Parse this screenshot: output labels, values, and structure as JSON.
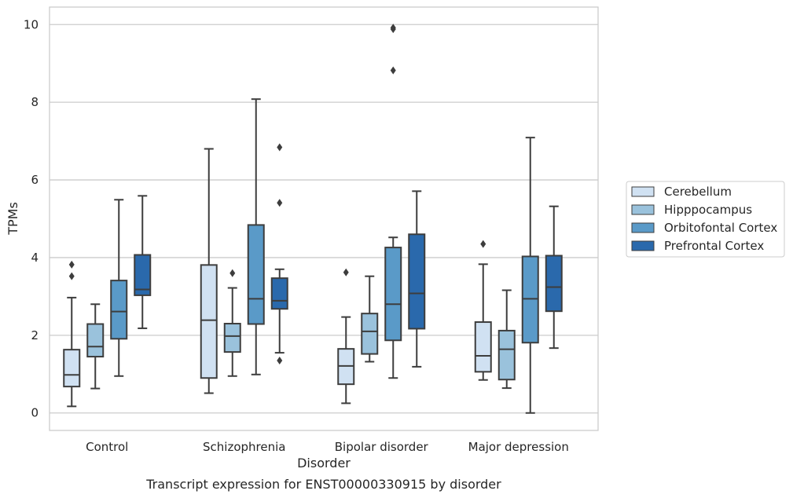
{
  "chart_data": {
    "type": "box",
    "title": "",
    "caption": "Transcript expression for ENST00000330915 by disorder",
    "xlabel": "Disorder",
    "ylabel": "TPMs",
    "ylim": [
      -0.45,
      10.45
    ],
    "yticks": [
      0,
      2,
      4,
      6,
      8,
      10
    ],
    "grid": "horizontal",
    "legend": "right",
    "categories": [
      "Control",
      "Schizophrenia",
      "Bipolar disorder",
      "Major depression"
    ],
    "series": [
      {
        "name": "Cerebellum",
        "color": "#d0e1f2",
        "boxes": [
          {
            "whislo": 0.17,
            "q1": 0.68,
            "med": 0.98,
            "q3": 1.63,
            "whishi": 2.97,
            "fliers": [
              3.52,
              3.82
            ]
          },
          {
            "whislo": 0.51,
            "q1": 0.9,
            "med": 2.39,
            "q3": 3.81,
            "whishi": 6.8,
            "fliers": []
          },
          {
            "whislo": 0.25,
            "q1": 0.74,
            "med": 1.21,
            "q3": 1.65,
            "whishi": 2.47,
            "fliers": [
              3.62
            ]
          },
          {
            "whislo": 0.85,
            "q1": 1.06,
            "med": 1.47,
            "q3": 2.34,
            "whishi": 3.83,
            "fliers": [
              4.35
            ]
          }
        ]
      },
      {
        "name": "Hipppocampus",
        "color": "#9ac2dc",
        "boxes": [
          {
            "whislo": 0.63,
            "q1": 1.45,
            "med": 1.71,
            "q3": 2.29,
            "whishi": 2.8,
            "fliers": []
          },
          {
            "whislo": 0.95,
            "q1": 1.57,
            "med": 1.98,
            "q3": 2.3,
            "whishi": 3.22,
            "fliers": [
              3.6
            ]
          },
          {
            "whislo": 1.32,
            "q1": 1.52,
            "med": 2.1,
            "q3": 2.56,
            "whishi": 3.52,
            "fliers": []
          },
          {
            "whislo": 0.64,
            "q1": 0.86,
            "med": 1.64,
            "q3": 2.12,
            "whishi": 3.16,
            "fliers": []
          }
        ]
      },
      {
        "name": "Orbitofontal Cortex",
        "color": "#5a9ac8",
        "boxes": [
          {
            "whislo": 0.95,
            "q1": 1.91,
            "med": 2.61,
            "q3": 3.41,
            "whishi": 5.49,
            "fliers": []
          },
          {
            "whislo": 0.99,
            "q1": 2.29,
            "med": 2.94,
            "q3": 4.84,
            "whishi": 8.08,
            "fliers": []
          },
          {
            "whislo": 0.9,
            "q1": 1.87,
            "med": 2.8,
            "q3": 4.26,
            "whishi": 4.52,
            "fliers": [
              8.82,
              9.88,
              9.92
            ]
          },
          {
            "whislo": 0.0,
            "q1": 1.81,
            "med": 2.94,
            "q3": 4.03,
            "whishi": 7.09,
            "fliers": []
          }
        ]
      },
      {
        "name": "Prefrontal Cortex",
        "color": "#2a69ac",
        "boxes": [
          {
            "whislo": 2.18,
            "q1": 3.03,
            "med": 3.18,
            "q3": 4.07,
            "whishi": 5.59,
            "fliers": []
          },
          {
            "whislo": 1.55,
            "q1": 2.68,
            "med": 2.89,
            "q3": 3.47,
            "whishi": 3.7,
            "fliers": [
              1.35,
              5.41,
              6.84
            ]
          },
          {
            "whislo": 1.19,
            "q1": 2.17,
            "med": 3.08,
            "q3": 4.6,
            "whishi": 5.71,
            "fliers": []
          },
          {
            "whislo": 1.67,
            "q1": 2.62,
            "med": 3.24,
            "q3": 4.05,
            "whishi": 5.32,
            "fliers": []
          }
        ]
      }
    ]
  }
}
